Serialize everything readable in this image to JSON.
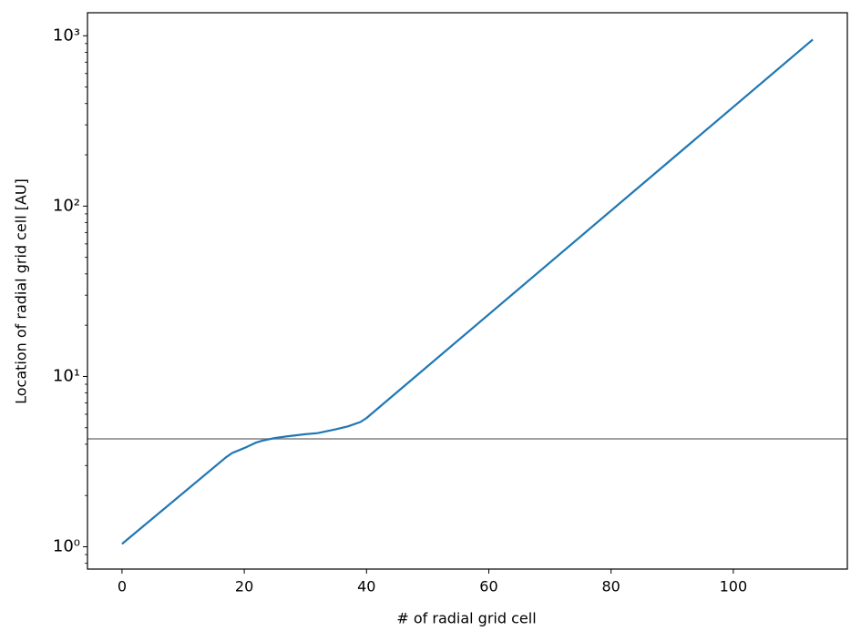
{
  "chart_data": {
    "type": "line",
    "xlabel": "# of radial grid cell",
    "ylabel": "Location of radial grid cell [AU]",
    "x": [
      0,
      17,
      18,
      20,
      22,
      23,
      25,
      27,
      30,
      32,
      35,
      37,
      39,
      40,
      113
    ],
    "series": [
      {
        "color": "#1f77b4",
        "values": [
          1.04,
          3.35,
          3.55,
          3.8,
          4.1,
          4.2,
          4.35,
          4.45,
          4.58,
          4.65,
          4.9,
          5.1,
          5.4,
          5.7,
          950
        ]
      }
    ],
    "hline": {
      "value": 4.3,
      "color": "#808080"
    },
    "xlim": [
      -5.65,
      118.65
    ],
    "ylim": [
      0.74,
      1365
    ],
    "yscale": "log",
    "xticks": [
      0,
      20,
      40,
      60,
      80,
      100
    ],
    "yticks": [
      {
        "value": 1,
        "label": "10⁰"
      },
      {
        "value": 10,
        "label": "10¹"
      },
      {
        "value": 100,
        "label": "10²"
      },
      {
        "value": 1000,
        "label": "10³"
      }
    ],
    "yminorticks": [
      0.8,
      0.9,
      2,
      3,
      4,
      5,
      6,
      7,
      8,
      9,
      20,
      30,
      40,
      50,
      60,
      70,
      80,
      90,
      200,
      300,
      400,
      500,
      600,
      700,
      800,
      900
    ]
  }
}
